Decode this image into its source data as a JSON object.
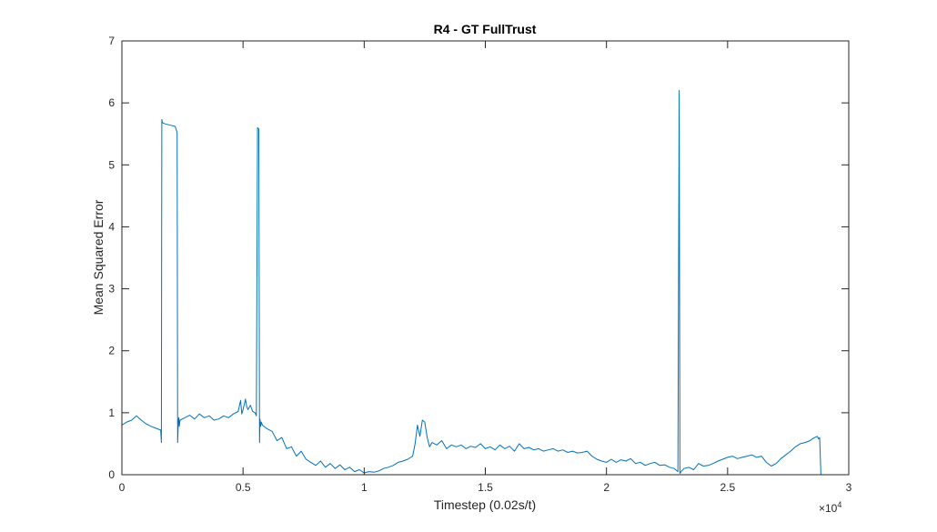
{
  "chart_data": {
    "type": "line",
    "title": "R4 - GT FullTrust",
    "xlabel": "Timestep (0.02s/t)",
    "ylabel": "Mean Squared Error",
    "x_exponent": {
      "base": "×10",
      "power": "4"
    },
    "xlim": [
      0,
      3
    ],
    "ylim": [
      0,
      7
    ],
    "xticks": [
      0,
      0.5,
      1,
      1.5,
      2,
      2.5,
      3
    ],
    "xtick_labels": [
      "0",
      "0.5",
      "1",
      "1.5",
      "2",
      "2.5",
      "3"
    ],
    "yticks": [
      0,
      1,
      2,
      3,
      4,
      5,
      6,
      7
    ],
    "ytick_labels": [
      "0",
      "1",
      "2",
      "3",
      "4",
      "5",
      "6",
      "7"
    ],
    "grid": false,
    "box": true,
    "series": [
      {
        "color": "#0072bd",
        "x": [
          0,
          0.02,
          0.04,
          0.06,
          0.08,
          0.1,
          0.12,
          0.14,
          0.16,
          0.163,
          0.165,
          0.167,
          0.18,
          0.2,
          0.22,
          0.228,
          0.23,
          0.233,
          0.235,
          0.237,
          0.24,
          0.26,
          0.28,
          0.3,
          0.32,
          0.34,
          0.36,
          0.38,
          0.4,
          0.42,
          0.44,
          0.46,
          0.48,
          0.49,
          0.495,
          0.5,
          0.51,
          0.515,
          0.52,
          0.53,
          0.54,
          0.55,
          0.555,
          0.56,
          0.565,
          0.568,
          0.57,
          0.573,
          0.575,
          0.58,
          0.6,
          0.62,
          0.64,
          0.66,
          0.68,
          0.7,
          0.72,
          0.74,
          0.76,
          0.78,
          0.8,
          0.82,
          0.84,
          0.86,
          0.88,
          0.9,
          0.92,
          0.94,
          0.96,
          0.98,
          1.0,
          1.02,
          1.04,
          1.06,
          1.08,
          1.1,
          1.12,
          1.14,
          1.16,
          1.18,
          1.2,
          1.21,
          1.22,
          1.23,
          1.24,
          1.25,
          1.26,
          1.27,
          1.28,
          1.3,
          1.32,
          1.34,
          1.36,
          1.38,
          1.4,
          1.42,
          1.44,
          1.46,
          1.48,
          1.5,
          1.52,
          1.54,
          1.56,
          1.58,
          1.6,
          1.62,
          1.64,
          1.66,
          1.68,
          1.7,
          1.72,
          1.74,
          1.76,
          1.78,
          1.8,
          1.82,
          1.84,
          1.86,
          1.88,
          1.9,
          1.92,
          1.94,
          1.96,
          1.98,
          2.0,
          2.02,
          2.04,
          2.06,
          2.08,
          2.1,
          2.12,
          2.14,
          2.16,
          2.18,
          2.2,
          2.22,
          2.24,
          2.26,
          2.28,
          2.295,
          2.3,
          2.303,
          2.31,
          2.32,
          2.34,
          2.36,
          2.38,
          2.4,
          2.42,
          2.44,
          2.46,
          2.48,
          2.5,
          2.52,
          2.54,
          2.56,
          2.58,
          2.6,
          2.62,
          2.64,
          2.66,
          2.68,
          2.7,
          2.72,
          2.74,
          2.76,
          2.78,
          2.8,
          2.82,
          2.84,
          2.85,
          2.86,
          2.87,
          2.875,
          2.88,
          2.885
        ],
        "y": [
          0.8,
          0.85,
          0.88,
          0.95,
          0.88,
          0.82,
          0.78,
          0.75,
          0.72,
          0.52,
          5.73,
          5.68,
          5.66,
          5.64,
          5.62,
          5.52,
          0.52,
          0.88,
          0.92,
          0.78,
          0.88,
          0.92,
          0.96,
          0.9,
          0.98,
          0.92,
          0.95,
          0.88,
          0.9,
          0.95,
          0.92,
          0.98,
          1.02,
          1.2,
          0.98,
          1.05,
          1.22,
          1.1,
          1.05,
          1.12,
          1.02,
          1.0,
          0.95,
          5.6,
          5.58,
          0.52,
          0.9,
          0.78,
          0.85,
          0.8,
          0.74,
          0.7,
          0.55,
          0.6,
          0.42,
          0.45,
          0.3,
          0.38,
          0.25,
          0.2,
          0.15,
          0.22,
          0.12,
          0.18,
          0.1,
          0.16,
          0.08,
          0.12,
          0.05,
          0.08,
          0.03,
          0.05,
          0.04,
          0.06,
          0.1,
          0.12,
          0.15,
          0.2,
          0.22,
          0.25,
          0.3,
          0.5,
          0.8,
          0.62,
          0.88,
          0.85,
          0.6,
          0.45,
          0.52,
          0.48,
          0.55,
          0.42,
          0.48,
          0.45,
          0.48,
          0.42,
          0.46,
          0.44,
          0.5,
          0.42,
          0.45,
          0.4,
          0.48,
          0.42,
          0.46,
          0.38,
          0.5,
          0.42,
          0.44,
          0.4,
          0.42,
          0.38,
          0.4,
          0.42,
          0.38,
          0.4,
          0.36,
          0.38,
          0.35,
          0.36,
          0.38,
          0.3,
          0.25,
          0.22,
          0.2,
          0.25,
          0.2,
          0.24,
          0.22,
          0.26,
          0.18,
          0.2,
          0.15,
          0.18,
          0.2,
          0.15,
          0.16,
          0.12,
          0.1,
          0.05,
          6.2,
          0.02,
          0.06,
          0.1,
          0.12,
          0.08,
          0.18,
          0.14,
          0.15,
          0.18,
          0.22,
          0.25,
          0.28,
          0.3,
          0.26,
          0.28,
          0.3,
          0.32,
          0.28,
          0.3,
          0.2,
          0.14,
          0.18,
          0.26,
          0.32,
          0.38,
          0.45,
          0.5,
          0.52,
          0.55,
          0.58,
          0.6,
          0.62,
          0.58,
          0.6,
          0.0
        ]
      }
    ]
  }
}
